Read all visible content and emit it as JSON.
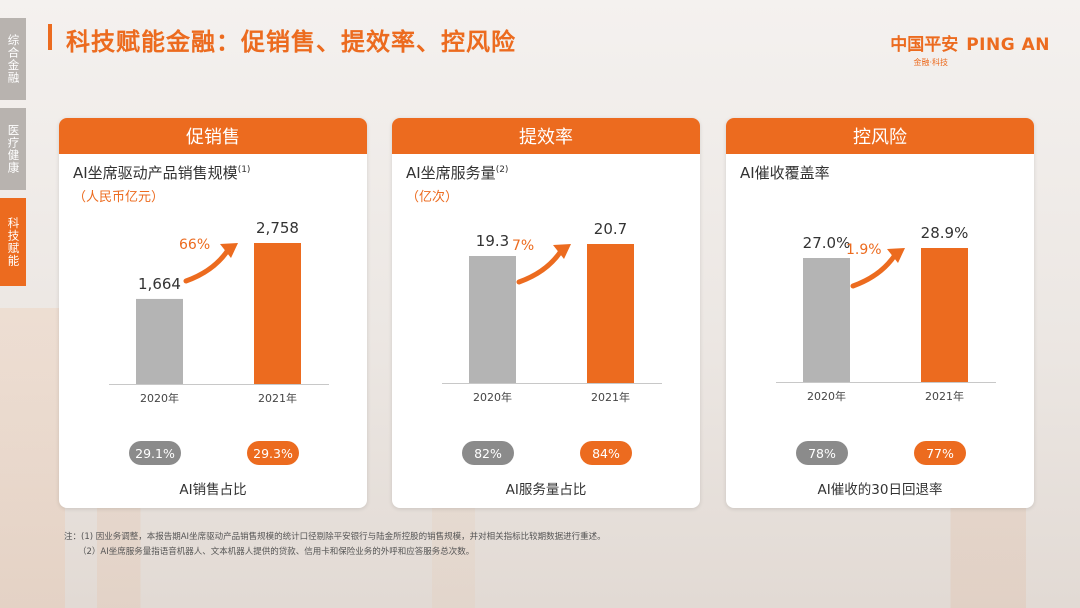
{
  "sidebar": {
    "tabs": [
      {
        "label": "综合金融",
        "active": false
      },
      {
        "label": "医疗健康",
        "active": false
      },
      {
        "label": "科技赋能",
        "active": true
      }
    ]
  },
  "header": {
    "title": "科技赋能金融：促销售、提效率、控风险",
    "logo_cn": "中国平安",
    "logo_en": "PING AN",
    "logo_sub": "金融·科技"
  },
  "colors": {
    "accent": "#ec6b1f",
    "gray_bar": "#b4b4b4",
    "gray_pill": "#8b8b8b"
  },
  "panels": [
    {
      "header": "促销售",
      "subtitle": "AI坐席驱动产品销售规模",
      "sup": "(1)",
      "unit": "（人民币亿元）",
      "pill_left": "29.1%",
      "pill_right": "29.3%",
      "footer": "AI销售占比"
    },
    {
      "header": "提效率",
      "subtitle": "AI坐席服务量",
      "sup": "(2)",
      "unit": "（亿次）",
      "pill_left": "82%",
      "pill_right": "84%",
      "footer": "AI服务量占比"
    },
    {
      "header": "控风险",
      "subtitle": "AI催收覆盖率",
      "sup": "",
      "unit": "",
      "pill_left": "78%",
      "pill_right": "77%",
      "footer": "AI催收的30日回退率"
    }
  ],
  "chart_data": [
    {
      "type": "bar",
      "categories": [
        "2020年",
        "2021年"
      ],
      "values": [
        1664,
        2758
      ],
      "value_labels": [
        "1,664",
        "2,758"
      ],
      "growth": "66%",
      "ylim": [
        0,
        2758
      ]
    },
    {
      "type": "bar",
      "categories": [
        "2020年",
        "2021年"
      ],
      "values": [
        19.3,
        20.7
      ],
      "value_labels": [
        "19.3",
        "20.7"
      ],
      "growth": "7%",
      "ylim": [
        0,
        20.7
      ]
    },
    {
      "type": "bar",
      "categories": [
        "2020年",
        "2021年"
      ],
      "values": [
        27.0,
        28.9
      ],
      "value_labels": [
        "27.0%",
        "28.9%"
      ],
      "growth": "1.9%",
      "ylim": [
        0,
        28.9
      ]
    }
  ],
  "footnotes": {
    "line1": "注：(1) 因业务调整，本报告期AI坐席驱动产品销售规模的统计口径剔除平安银行与陆金所控股的销售规模，并对相关指标比较期数据进行重述。",
    "line2": "（2）AI坐席服务量指语音机器人、文本机器人提供的贷款、信用卡和保险业务的外呼和应答服务总次数。"
  }
}
